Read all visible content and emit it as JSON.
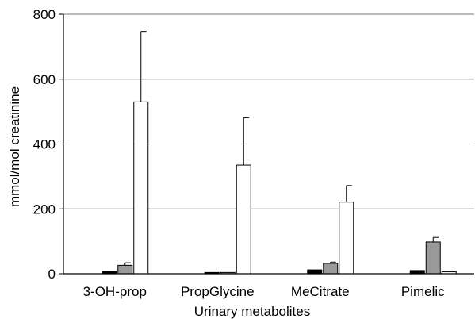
{
  "chart_data": {
    "type": "bar",
    "title": "",
    "xlabel": "Urinary metabolites",
    "ylabel": "mmol/mol creatinine",
    "ylim": [
      0,
      800
    ],
    "yticks": [
      "0",
      "200",
      "400",
      "600",
      "800"
    ],
    "grid": true,
    "categories": [
      "3-OH-prop",
      "PropGlycine",
      "MeCitrate",
      "Pimelic"
    ],
    "series": [
      {
        "color": "#000000",
        "values": [
          8,
          4,
          12,
          10
        ],
        "errors": [
          0,
          0,
          0,
          0
        ]
      },
      {
        "color": "#999999",
        "values": [
          26,
          4,
          32,
          98
        ],
        "errors": [
          8,
          0,
          4,
          14
        ]
      },
      {
        "color": "#ffffff",
        "values": [
          530,
          335,
          221,
          6
        ],
        "errors": [
          217,
          146,
          51,
          0
        ]
      }
    ]
  }
}
